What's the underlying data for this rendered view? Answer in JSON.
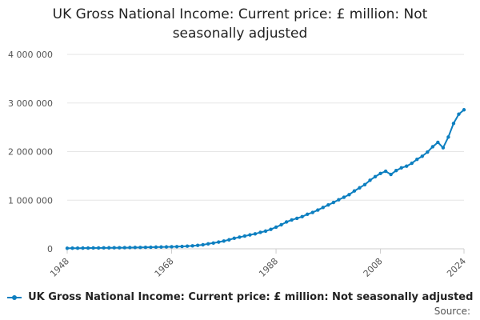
{
  "chart_data": {
    "type": "line",
    "title_line1": "UK Gross National Income: Current price: £ million: Not",
    "title_line2": "seasonally adjusted",
    "xlabel": "",
    "ylabel": "",
    "xlim": [
      1948,
      2024
    ],
    "ylim": [
      0,
      4000000
    ],
    "y_ticks": [
      0,
      1000000,
      2000000,
      3000000,
      4000000
    ],
    "y_tick_labels": [
      "0",
      "1 000 000",
      "2 000 000",
      "3 000 000",
      "4 000 000"
    ],
    "x_ticks": [
      1948,
      1968,
      1988,
      2008,
      2024
    ],
    "x_tick_labels": [
      "1948",
      "1968",
      "1988",
      "2008",
      "2024"
    ],
    "grid": "horizontal",
    "legend_position": "bottom",
    "series": [
      {
        "name": "UK Gross National Income: Current price: £ million: Not seasonally adjusted",
        "color": "#0d7fc0",
        "x": [
          1948,
          1949,
          1950,
          1951,
          1952,
          1953,
          1954,
          1955,
          1956,
          1957,
          1958,
          1959,
          1960,
          1961,
          1962,
          1963,
          1964,
          1965,
          1966,
          1967,
          1968,
          1969,
          1970,
          1971,
          1972,
          1973,
          1974,
          1975,
          1976,
          1977,
          1978,
          1979,
          1980,
          1981,
          1982,
          1983,
          1984,
          1985,
          1986,
          1987,
          1988,
          1989,
          1990,
          1991,
          1992,
          1993,
          1994,
          1995,
          1996,
          1997,
          1998,
          1999,
          2000,
          2001,
          2002,
          2003,
          2004,
          2005,
          2006,
          2007,
          2008,
          2009,
          2010,
          2011,
          2012,
          2013,
          2014,
          2015,
          2016,
          2017,
          2018,
          2019,
          2020,
          2021,
          2022,
          2023,
          2024
        ],
        "values": [
          11800,
          12500,
          13200,
          14600,
          15800,
          16900,
          17800,
          19000,
          20400,
          21500,
          22400,
          23500,
          25300,
          26900,
          28200,
          30000,
          32600,
          34800,
          37000,
          39000,
          41800,
          44500,
          49000,
          54500,
          61000,
          71000,
          82500,
          102000,
          119000,
          138000,
          160000,
          185000,
          217000,
          239000,
          262000,
          286000,
          308000,
          338000,
          364000,
          400000,
          445000,
          494000,
          552000,
          593000,
          626000,
          661000,
          711000,
          748000,
          797000,
          850000,
          902000,
          953000,
          1010000,
          1060000,
          1115000,
          1190000,
          1255000,
          1320000,
          1410000,
          1485000,
          1550000,
          1595000,
          1530000,
          1610000,
          1665000,
          1700000,
          1760000,
          1840000,
          1905000,
          1990000,
          2100000,
          2190000,
          2080000,
          2300000,
          2580000,
          2770000,
          2860000
        ]
      }
    ]
  },
  "legend": {
    "label": "UK Gross National Income: Current price: £ million: Not seasonally adjusted"
  },
  "credit": {
    "label": "Source:"
  }
}
